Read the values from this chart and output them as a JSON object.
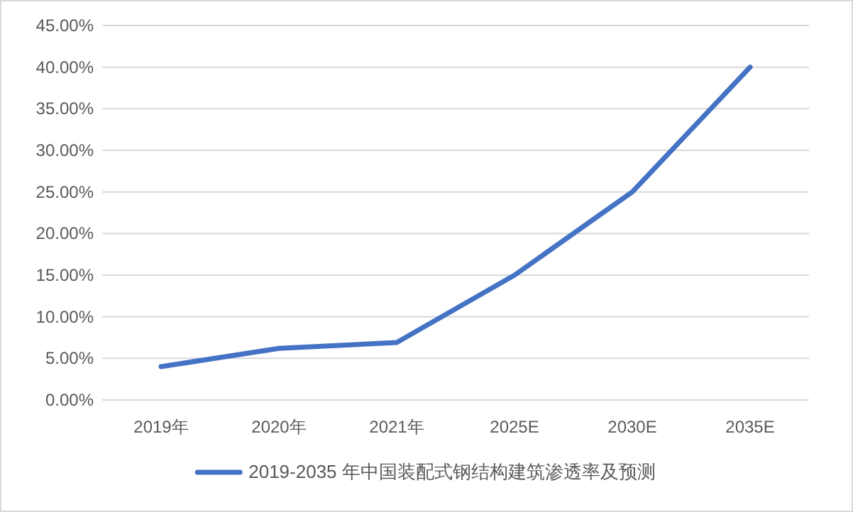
{
  "chart_data": {
    "type": "line",
    "categories": [
      "2019年",
      "2020年",
      "2021年",
      "2025E",
      "2030E",
      "2035E"
    ],
    "series": [
      {
        "name": "2019-2035 年中国装配式钢结构建筑渗透率及预测",
        "color": "#4472c4",
        "values": [
          4.0,
          6.2,
          6.9,
          15.0,
          25.0,
          40.0
        ]
      }
    ],
    "ylim": [
      0,
      45
    ],
    "yticks": [
      {
        "value": 0,
        "label": "0.00%"
      },
      {
        "value": 5,
        "label": "5.00%"
      },
      {
        "value": 10,
        "label": "10.00%"
      },
      {
        "value": 15,
        "label": "15.00%"
      },
      {
        "value": 20,
        "label": "20.00%"
      },
      {
        "value": 25,
        "label": "25.00%"
      },
      {
        "value": 30,
        "label": "30.00%"
      },
      {
        "value": 35,
        "label": "35.00%"
      },
      {
        "value": 40,
        "label": "40.00%"
      },
      {
        "value": 45,
        "label": "45.00%"
      }
    ],
    "grid": "y",
    "legend": "bottom"
  }
}
